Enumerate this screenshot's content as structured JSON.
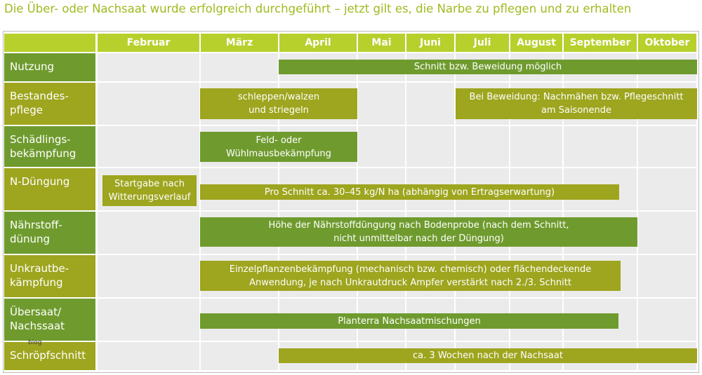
{
  "header": {
    "title": "Die Über- oder Nachsaat wurde erfolgreich durchgeführt – jetzt gilt es, die Narbe zu pflegen und zu erhalten"
  },
  "table": {
    "months": [
      "Februar",
      "März",
      "April",
      "Mai",
      "Juni",
      "Juli",
      "August",
      "September",
      "Oktober"
    ],
    "rows": [
      {
        "label": "Nutzung",
        "bars": [
          "Schnitt bzw. Beweidung möglich"
        ]
      },
      {
        "label": "Bestandes-\npflege",
        "bars": [
          "schleppen/walzen\nund striegeln",
          "Bei Beweidung: Nachmähen bzw. Pflegeschnitt\nam Saisonende"
        ]
      },
      {
        "label": "Schädlings-\nbekämpfung",
        "bars": [
          "Feld- oder\nWühlmausbekämpfung"
        ]
      },
      {
        "label": "N-Düngung",
        "bars": [
          "Startgabe nach\nWitterungsverlauf",
          "Pro Schnitt ca. 30–45 kg/N ha (abhängig von Ertragserwartung)"
        ]
      },
      {
        "label": "Nährstoff-\ndünung",
        "bars": [
          "Höhe der Nährstoffdüngung nach Bodenprobe (nach dem Schnitt,\nnicht unmittelbar nach der Düngung)"
        ]
      },
      {
        "label": "Unkrautbe-\nkämpfung",
        "bars": [
          "Einzelpflanzenbekämpfung (mechanisch bzw. chemisch) oder flächendeckende\nAnwendung, je nach Unkrautdruck Ampfer verstärkt nach 2./3. Schnitt"
        ]
      },
      {
        "label": "Übersaat/\nNachssaat",
        "bars": [
          "Planterra Nachsaatmischungen"
        ]
      },
      {
        "label": "Schröpfschnitt",
        "bars": [
          "ca. 3 Wochen nach der Nachsaat"
        ]
      }
    ],
    "watermark": "blog"
  }
}
